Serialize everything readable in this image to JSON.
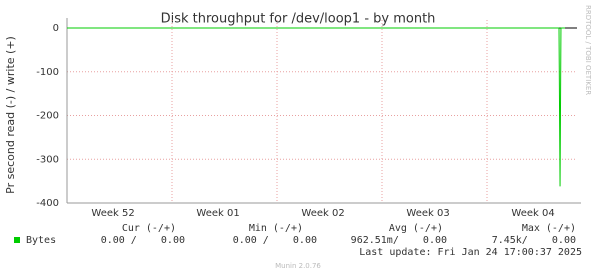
{
  "chart_data": {
    "type": "line",
    "title": "Disk throughput for /dev/loop1 - by month",
    "y_label": "Pr second read (-) / write (+)",
    "xlim": [
      0,
      34
    ],
    "ylim": [
      -400,
      0
    ],
    "yticks": [
      0,
      -100,
      -200,
      -300,
      -400
    ],
    "xticks": [
      {
        "value": 3.07,
        "label": "Week 52"
      },
      {
        "value": 10.07,
        "label": "Week 01"
      },
      {
        "value": 17.07,
        "label": "Week 02"
      },
      {
        "value": 24.07,
        "label": "Week 03"
      },
      {
        "value": 31.07,
        "label": "Week 04"
      }
    ],
    "x_grid": [
      7,
      14,
      21,
      28
    ],
    "grid": true,
    "x": [
      0,
      32.8,
      32.87,
      32.93,
      33.2
    ],
    "series": [
      {
        "name": "Bytes",
        "color": "#00cc00",
        "values": [
          0,
          0,
          -362,
          0,
          0
        ]
      }
    ],
    "legend": {
      "headers": [
        "Cur (-/+)",
        "Min (-/+)",
        "Avg (-/+)",
        "Max (-/+)"
      ],
      "rows": [
        [
          "0.00 /    0.00",
          "0.00 /    0.00",
          "962.51m/    0.00",
          "7.45k/    0.00"
        ]
      ]
    }
  },
  "last_update": "Last update: Fri Jan 24 17:00:37 2025",
  "footer": "Munin 2.0.76",
  "watermark": "RRDTOOL / TOBI OETIKER"
}
